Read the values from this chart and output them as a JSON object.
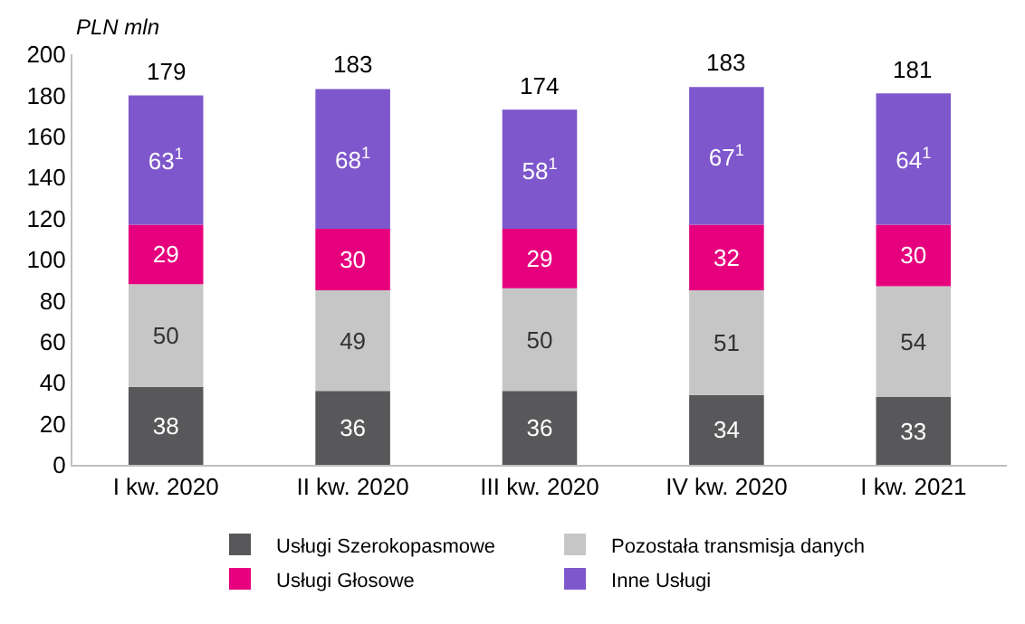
{
  "chart_data": {
    "type": "bar",
    "stacked": true,
    "ylabel": "PLN mln",
    "categories": [
      "I kw. 2020",
      "II kw. 2020",
      "III kw. 2020",
      "IV kw. 2020",
      "I kw. 2021"
    ],
    "series": [
      {
        "name": "Usługi Szerokopasmowe",
        "color": "#58585a",
        "values": [
          38,
          36,
          36,
          34,
          33
        ],
        "value_labels": [
          "38",
          "36",
          "36",
          "34",
          "33"
        ]
      },
      {
        "name": "Pozostała transmisja danych",
        "color": "#c6c6c6",
        "values": [
          50,
          49,
          50,
          51,
          54
        ],
        "value_labels": [
          "50",
          "49",
          "50",
          "51",
          "54"
        ]
      },
      {
        "name": "Usługi Głosowe",
        "color": "#e6007e",
        "values": [
          29,
          30,
          29,
          32,
          30
        ],
        "value_labels": [
          "29",
          "30",
          "29",
          "32",
          "30"
        ]
      },
      {
        "name": "Inne Usługi",
        "color": "#7e57cc",
        "values": [
          63,
          68,
          58,
          67,
          64
        ],
        "value_labels": [
          "63$^{1}$",
          "68$^{1}$",
          "58$^{1}$",
          "67$^{1}$",
          "64$^{1}$"
        ]
      }
    ],
    "totals": [
      "179",
      "183",
      "174",
      "183",
      "181"
    ],
    "ylim": [
      0,
      200
    ],
    "yticks": [
      0,
      20,
      40,
      60,
      80,
      100,
      120,
      140,
      160,
      180,
      200
    ],
    "legend": "bottom"
  }
}
